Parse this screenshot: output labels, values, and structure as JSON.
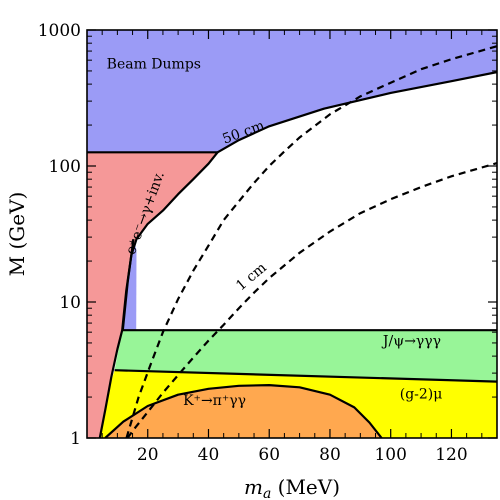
{
  "chart_data": {
    "type": "area",
    "title": "",
    "xlabel_main": "m",
    "xlabel_sub": "a",
    "xlabel_unit": " (MeV)",
    "ylabel": "M (GeV)",
    "xlim": [
      0,
      135
    ],
    "ylim": [
      1,
      1000
    ],
    "yscale": "log",
    "grid": false,
    "x_ticks": [
      {
        "value": 20,
        "label": "20"
      },
      {
        "value": 40,
        "label": "40"
      },
      {
        "value": 60,
        "label": "60"
      },
      {
        "value": 80,
        "label": "80"
      },
      {
        "value": 100,
        "label": "100"
      },
      {
        "value": 120,
        "label": "120"
      }
    ],
    "y_ticks": [
      {
        "value": 1,
        "label": "1"
      },
      {
        "value": 10,
        "label": "10"
      },
      {
        "value": 100,
        "label": "100"
      },
      {
        "value": 1000,
        "label": "1000"
      }
    ],
    "regions": [
      {
        "label": "Beam Dumps",
        "color": "#9b9bf6",
        "label_at": [
          22,
          520
        ],
        "label_rotate": 0,
        "boundary": [
          [
            0,
            126
          ],
          [
            43,
            126
          ],
          [
            50,
            155
          ],
          [
            60,
            196
          ],
          [
            78,
            264
          ],
          [
            100,
            345
          ],
          [
            120,
            420
          ],
          [
            135,
            490
          ],
          [
            135,
            1000
          ],
          [
            0,
            1000
          ]
        ]
      },
      {
        "label": "",
        "color": "#9b9bf6",
        "label_at": null,
        "label_rotate": 0,
        "boundary": [
          [
            11.8,
            6.2
          ],
          [
            13.4,
            14
          ],
          [
            15.3,
            29
          ],
          [
            16.3,
            24
          ],
          [
            16.2,
            6.2
          ]
        ]
      },
      {
        "label": "e⁺e⁻→γ+inv.",
        "color": "#f59898",
        "label_at": [
          20.5,
          44
        ],
        "label_rotate": -70,
        "boundary": [
          [
            0,
            1
          ],
          [
            0,
            126
          ],
          [
            43,
            126
          ],
          [
            40,
            104
          ],
          [
            35,
            80
          ],
          [
            30,
            62
          ],
          [
            25,
            47
          ],
          [
            20,
            37.5
          ],
          [
            16.3,
            29
          ],
          [
            14.6,
            22
          ],
          [
            12.9,
            12
          ],
          [
            11.6,
            6.2
          ],
          [
            10,
            4.5
          ],
          [
            8,
            2.8
          ],
          [
            6,
            1.6
          ],
          [
            4.2,
            1
          ]
        ]
      },
      {
        "label": "J/ψ→γγγ",
        "color": "#98f598",
        "label_at": [
          107,
          4.8
        ],
        "label_rotate": 0,
        "boundary": [
          [
            9.1,
            3.15
          ],
          [
            11.6,
            6.2
          ],
          [
            135,
            6.2
          ],
          [
            135,
            2.6
          ]
        ]
      },
      {
        "label": "(g-2)μ",
        "color": "#ffff00",
        "label_at": [
          110,
          1.95
        ],
        "label_rotate": 0,
        "boundary": [
          [
            4.2,
            1
          ],
          [
            6,
            1.6
          ],
          [
            7.5,
            2.4
          ],
          [
            9.1,
            3.15
          ],
          [
            135,
            2.6
          ],
          [
            135,
            1
          ]
        ]
      },
      {
        "label": "K⁺→π⁺γγ",
        "color": "#ffa84f",
        "label_at": [
          42,
          1.75
        ],
        "label_rotate": 0,
        "boundary": [
          [
            6,
            1
          ],
          [
            12,
            1.32
          ],
          [
            20,
            1.72
          ],
          [
            30,
            2.08
          ],
          [
            40,
            2.3
          ],
          [
            50,
            2.42
          ],
          [
            60,
            2.45
          ],
          [
            70,
            2.36
          ],
          [
            80,
            2.08
          ],
          [
            88,
            1.68
          ],
          [
            93,
            1.3
          ],
          [
            97,
            1
          ]
        ]
      }
    ],
    "curves": [
      {
        "name": "50 cm",
        "style": "dashed",
        "label_at": [
          52,
          165
        ],
        "label_rotate": -20,
        "points": [
          [
            13,
            1
          ],
          [
            17,
            2
          ],
          [
            21,
            3.5
          ],
          [
            25,
            6
          ],
          [
            30,
            10.5
          ],
          [
            35,
            17
          ],
          [
            40,
            26
          ],
          [
            45,
            40
          ],
          [
            50,
            55
          ],
          [
            55,
            75
          ],
          [
            60,
            100
          ],
          [
            65,
            128
          ],
          [
            70,
            162
          ],
          [
            80,
            240
          ],
          [
            90,
            325
          ],
          [
            100,
            410
          ],
          [
            110,
            515
          ],
          [
            120,
            610
          ],
          [
            135,
            760
          ]
        ]
      },
      {
        "name": "1 cm",
        "style": "dashed",
        "label_at": [
          55,
          14.5
        ],
        "label_rotate": -40,
        "points": [
          [
            13.3,
            1
          ],
          [
            16,
            1.2
          ],
          [
            20,
            1.55
          ],
          [
            25,
            2.15
          ],
          [
            30,
            2.9
          ],
          [
            35,
            3.9
          ],
          [
            40,
            5.2
          ],
          [
            45,
            6.8
          ],
          [
            50,
            9
          ],
          [
            55,
            11.7
          ],
          [
            60,
            15
          ],
          [
            70,
            23
          ],
          [
            80,
            33
          ],
          [
            90,
            45
          ],
          [
            100,
            57
          ],
          [
            110,
            70
          ],
          [
            120,
            84
          ],
          [
            135,
            105
          ]
        ]
      }
    ],
    "boundary_lines": [
      {
        "points": [
          [
            0,
            126
          ],
          [
            43,
            126
          ]
        ]
      },
      {
        "points": [
          [
            43,
            126
          ],
          [
            50,
            155
          ],
          [
            60,
            196
          ],
          [
            78,
            264
          ],
          [
            100,
            345
          ],
          [
            120,
            420
          ],
          [
            135,
            490
          ]
        ]
      },
      {
        "points": [
          [
            4.2,
            1
          ],
          [
            6,
            1.6
          ],
          [
            8,
            2.8
          ],
          [
            10,
            4.5
          ],
          [
            11.6,
            6.2
          ],
          [
            12.9,
            12
          ],
          [
            14.6,
            22
          ],
          [
            16.3,
            29
          ],
          [
            20,
            37.5
          ],
          [
            25,
            47
          ],
          [
            30,
            62
          ],
          [
            35,
            80
          ],
          [
            40,
            104
          ],
          [
            43,
            126
          ]
        ]
      },
      {
        "points": [
          [
            11.8,
            6.2
          ],
          [
            13.4,
            14
          ],
          [
            15.3,
            29
          ]
        ]
      },
      {
        "points": [
          [
            11.6,
            6.2
          ],
          [
            135,
            6.2
          ]
        ]
      },
      {
        "points": [
          [
            9.1,
            3.15
          ],
          [
            135,
            2.6
          ]
        ]
      },
      {
        "points": [
          [
            6,
            1
          ],
          [
            12,
            1.32
          ],
          [
            20,
            1.72
          ],
          [
            30,
            2.08
          ],
          [
            40,
            2.3
          ],
          [
            50,
            2.42
          ],
          [
            60,
            2.45
          ],
          [
            70,
            2.36
          ],
          [
            80,
            2.08
          ],
          [
            88,
            1.68
          ],
          [
            93,
            1.3
          ],
          [
            97,
            1
          ]
        ]
      }
    ]
  }
}
